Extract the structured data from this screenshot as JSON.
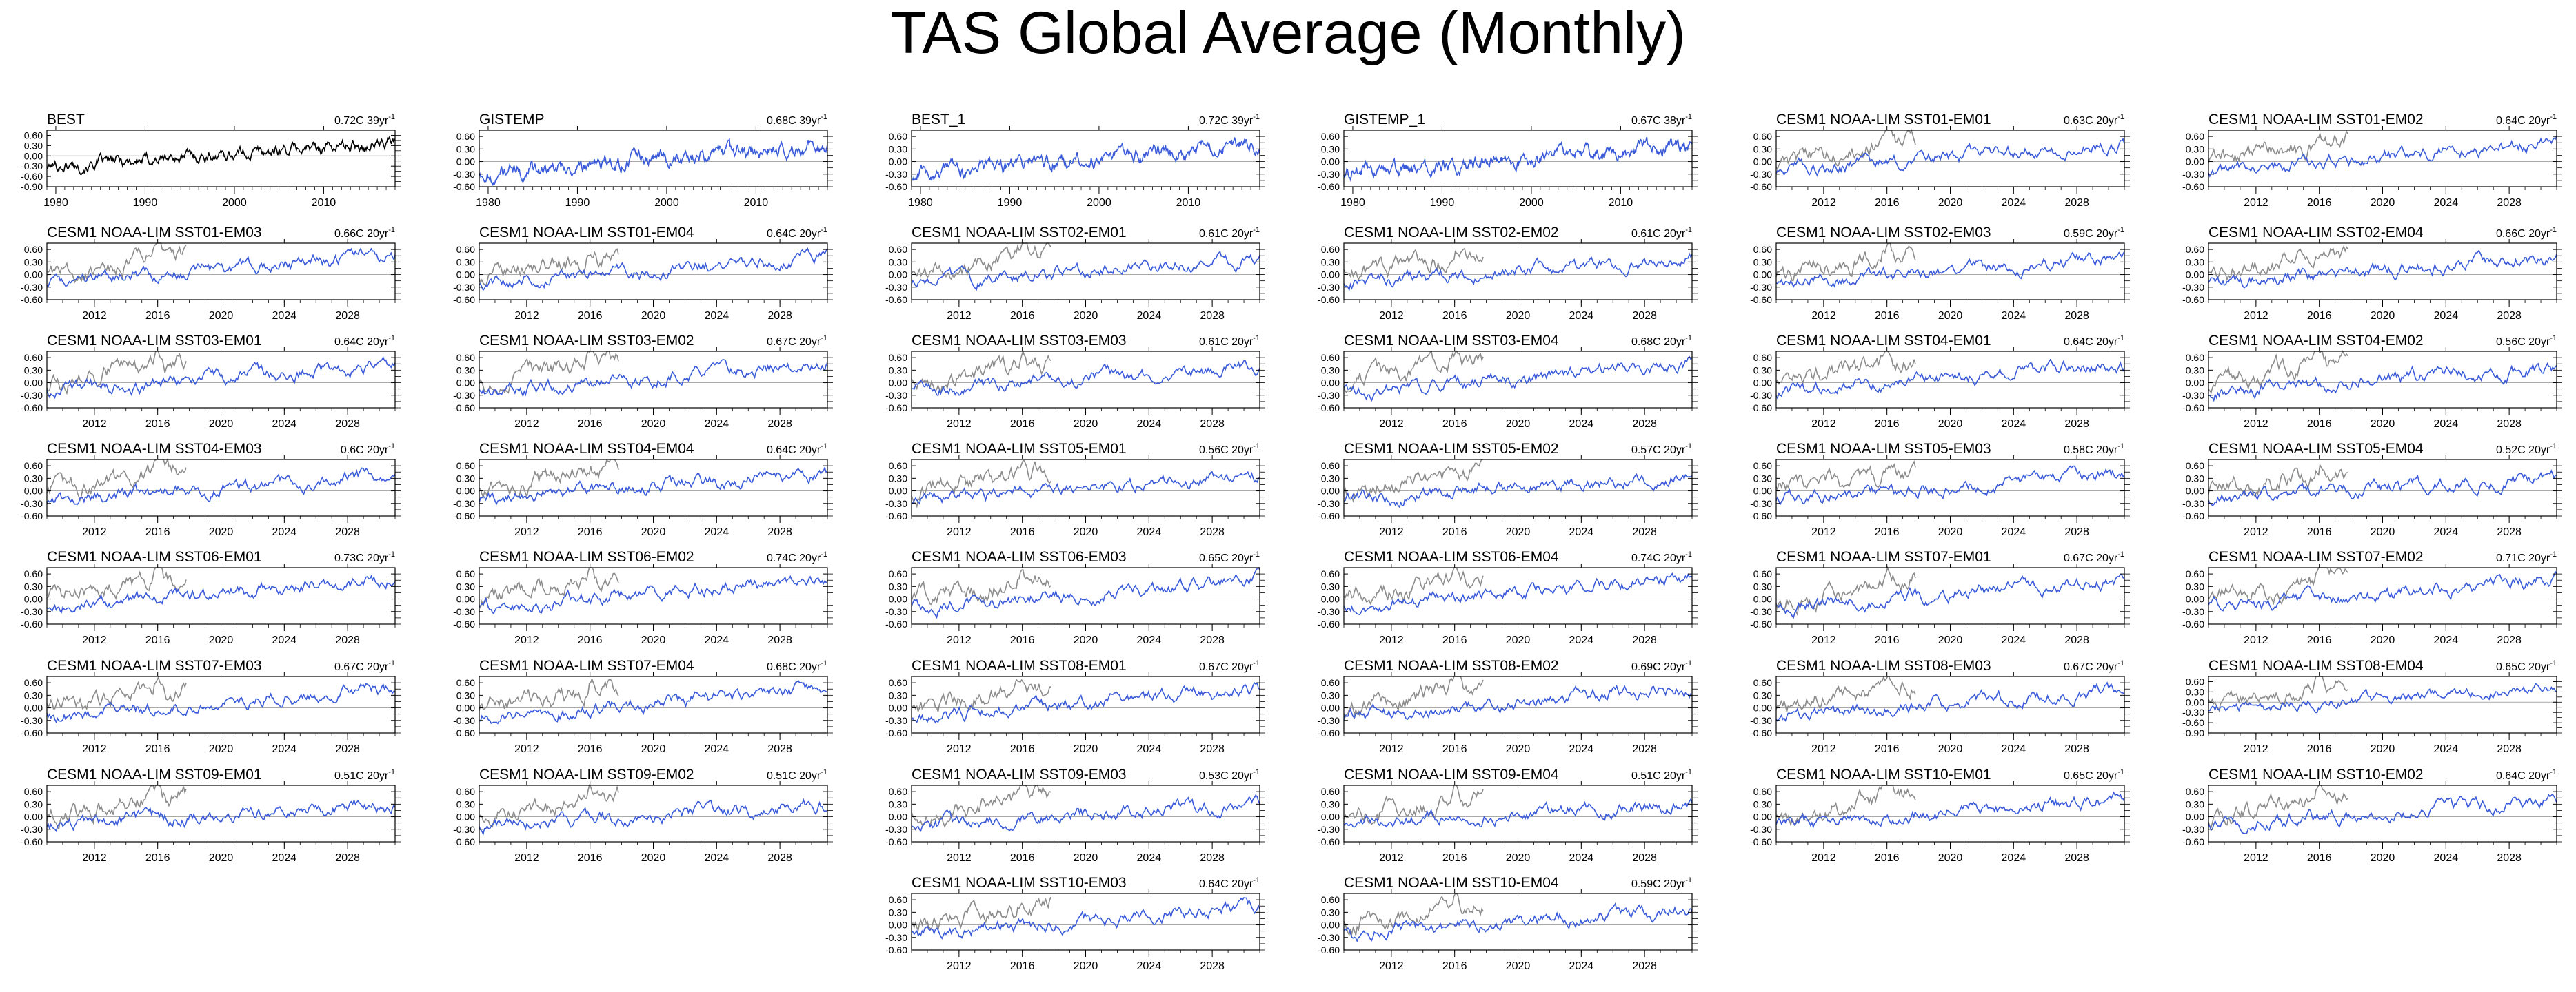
{
  "title": "TAS Global Average (Monthly)",
  "colors": {
    "observed": "#000000",
    "model": "#3a5bd9",
    "reference": "#8c8c8c",
    "zero_line": "#aaaaaa"
  },
  "chart_data": {
    "type": "line",
    "figure_title": "TAS Global Average (Monthly)",
    "observed_panels": [
      {
        "name": "BEST",
        "trend": "0.72C 39yr",
        "x_range": [
          1979,
          2018
        ],
        "x_ticks": [
          "1980",
          "1990",
          "2000",
          "2010"
        ],
        "y_ticks": [
          "0.60",
          "0.30",
          "0.00",
          "-0.30",
          "-0.60",
          "-0.90"
        ],
        "ylim": [
          -0.9,
          0.75
        ],
        "line_color": "black"
      },
      {
        "name": "GISTEMP",
        "trend": "0.68C 39yr",
        "x_range": [
          1979,
          2018
        ],
        "x_ticks": [
          "1980",
          "1990",
          "2000",
          "2010"
        ],
        "y_ticks": [
          "0.60",
          "0.30",
          "0.00",
          "-0.30",
          "-0.60"
        ],
        "ylim": [
          -0.6,
          0.75
        ],
        "line_color": "blue"
      },
      {
        "name": "BEST_1",
        "trend": "0.72C 39yr",
        "x_range": [
          1979,
          2018
        ],
        "x_ticks": [
          "1980",
          "1990",
          "2000",
          "2010"
        ],
        "y_ticks": [
          "0.60",
          "0.30",
          "0.00",
          "-0.30",
          "-0.60"
        ],
        "ylim": [
          -0.6,
          0.75
        ],
        "line_color": "blue"
      },
      {
        "name": "GISTEMP_1",
        "trend": "0.67C 38yr",
        "x_range": [
          1979,
          2018
        ],
        "x_ticks": [
          "1980",
          "1990",
          "2000",
          "2010"
        ],
        "y_ticks": [
          "0.60",
          "0.30",
          "0.00",
          "-0.30",
          "-0.60"
        ],
        "ylim": [
          -0.6,
          0.75
        ],
        "line_color": "blue"
      }
    ],
    "model_x_range": [
      2009,
      2031
    ],
    "model_x_ticks": [
      "2012",
      "2016",
      "2020",
      "2024",
      "2028"
    ],
    "model_y_ticks": [
      "0.60",
      "0.30",
      "0.00",
      "-0.30",
      "-0.60"
    ],
    "model_ylim": [
      -0.6,
      0.75
    ],
    "reference_series_x_range": [
      2009,
      2017.8
    ],
    "model_panels": [
      {
        "name": "CESM1 NOAA-LIM SST01-EM01",
        "trend": "0.63C 20yr"
      },
      {
        "name": "CESM1 NOAA-LIM SST01-EM02",
        "trend": "0.64C 20yr"
      },
      {
        "name": "CESM1 NOAA-LIM SST01-EM03",
        "trend": "0.66C 20yr"
      },
      {
        "name": "CESM1 NOAA-LIM SST01-EM04",
        "trend": "0.64C 20yr"
      },
      {
        "name": "CESM1 NOAA-LIM SST02-EM01",
        "trend": "0.61C 20yr"
      },
      {
        "name": "CESM1 NOAA-LIM SST02-EM02",
        "trend": "0.61C 20yr"
      },
      {
        "name": "CESM1 NOAA-LIM SST02-EM03",
        "trend": "0.59C 20yr"
      },
      {
        "name": "CESM1 NOAA-LIM SST02-EM04",
        "trend": "0.66C 20yr"
      },
      {
        "name": "CESM1 NOAA-LIM SST03-EM01",
        "trend": "0.64C 20yr"
      },
      {
        "name": "CESM1 NOAA-LIM SST03-EM02",
        "trend": "0.67C 20yr"
      },
      {
        "name": "CESM1 NOAA-LIM SST03-EM03",
        "trend": "0.61C 20yr"
      },
      {
        "name": "CESM1 NOAA-LIM SST03-EM04",
        "trend": "0.68C 20yr"
      },
      {
        "name": "CESM1 NOAA-LIM SST04-EM01",
        "trend": "0.64C 20yr"
      },
      {
        "name": "CESM1 NOAA-LIM SST04-EM02",
        "trend": "0.56C 20yr"
      },
      {
        "name": "CESM1 NOAA-LIM SST04-EM03",
        "trend": "0.6C 20yr"
      },
      {
        "name": "CESM1 NOAA-LIM SST04-EM04",
        "trend": "0.64C 20yr"
      },
      {
        "name": "CESM1 NOAA-LIM SST05-EM01",
        "trend": "0.56C 20yr"
      },
      {
        "name": "CESM1 NOAA-LIM SST05-EM02",
        "trend": "0.57C 20yr"
      },
      {
        "name": "CESM1 NOAA-LIM SST05-EM03",
        "trend": "0.58C 20yr"
      },
      {
        "name": "CESM1 NOAA-LIM SST05-EM04",
        "trend": "0.52C 20yr"
      },
      {
        "name": "CESM1 NOAA-LIM SST06-EM01",
        "trend": "0.73C 20yr"
      },
      {
        "name": "CESM1 NOAA-LIM SST06-EM02",
        "trend": "0.74C 20yr"
      },
      {
        "name": "CESM1 NOAA-LIM SST06-EM03",
        "trend": "0.65C 20yr"
      },
      {
        "name": "CESM1 NOAA-LIM SST06-EM04",
        "trend": "0.74C 20yr"
      },
      {
        "name": "CESM1 NOAA-LIM SST07-EM01",
        "trend": "0.67C 20yr"
      },
      {
        "name": "CESM1 NOAA-LIM SST07-EM02",
        "trend": "0.71C 20yr"
      },
      {
        "name": "CESM1 NOAA-LIM SST07-EM03",
        "trend": "0.67C 20yr"
      },
      {
        "name": "CESM1 NOAA-LIM SST07-EM04",
        "trend": "0.68C 20yr"
      },
      {
        "name": "CESM1 NOAA-LIM SST08-EM01",
        "trend": "0.67C 20yr"
      },
      {
        "name": "CESM1 NOAA-LIM SST08-EM02",
        "trend": "0.69C 20yr"
      },
      {
        "name": "CESM1 NOAA-LIM SST08-EM03",
        "trend": "0.67C 20yr"
      },
      {
        "name": "CESM1 NOAA-LIM SST08-EM04",
        "trend": "0.65C 20yr",
        "y_ticks": [
          "0.60",
          "0.30",
          "0.00",
          "-0.30",
          "-0.60",
          "-0.90"
        ],
        "ylim": [
          -0.9,
          0.75
        ]
      },
      {
        "name": "CESM1 NOAA-LIM SST09-EM01",
        "trend": "0.51C 20yr"
      },
      {
        "name": "CESM1 NOAA-LIM SST09-EM02",
        "trend": "0.51C 20yr"
      },
      {
        "name": "CESM1 NOAA-LIM SST09-EM03",
        "trend": "0.53C 20yr"
      },
      {
        "name": "CESM1 NOAA-LIM SST09-EM04",
        "trend": "0.51C 20yr"
      },
      {
        "name": "CESM1 NOAA-LIM SST10-EM01",
        "trend": "0.65C 20yr"
      },
      {
        "name": "CESM1 NOAA-LIM SST10-EM02",
        "trend": "0.64C 20yr"
      },
      {
        "name": "CESM1 NOAA-LIM SST10-EM03",
        "trend": "0.64C 20yr"
      },
      {
        "name": "CESM1 NOAA-LIM SST10-EM04",
        "trend": "0.59C 20yr"
      }
    ],
    "trend_unit_superscript": "-1"
  }
}
